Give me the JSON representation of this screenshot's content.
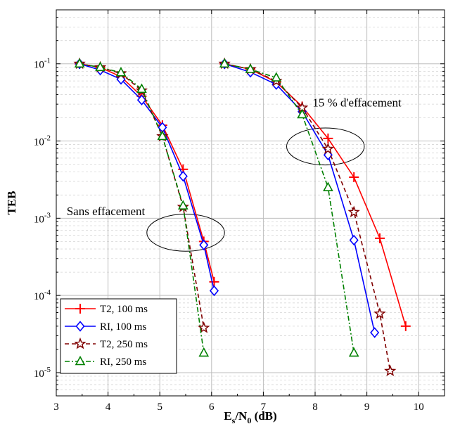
{
  "chart_data": {
    "type": "line",
    "xlabel": {
      "main": "E",
      "sub1": "s",
      "mid": "/N",
      "sub2": "0",
      "tail": " (dB)"
    },
    "ylabel": "TEB",
    "xlim": [
      3,
      10.5
    ],
    "ylim": [
      5e-06,
      0.5
    ],
    "yscale": "log",
    "grid": true,
    "legend_position": "bottom-left",
    "xticks": [
      "3",
      "4",
      "5",
      "6",
      "7",
      "8",
      "9",
      "10"
    ],
    "yticks": [
      {
        "value": 0.1,
        "base": "10",
        "exp": "-1"
      },
      {
        "value": 0.01,
        "base": "10",
        "exp": "-2"
      },
      {
        "value": 0.001,
        "base": "10",
        "exp": "-3"
      },
      {
        "value": 0.0001,
        "base": "10",
        "exp": "-4"
      },
      {
        "value": 1e-05,
        "base": "10",
        "exp": "-5"
      }
    ],
    "annotations": [
      {
        "text": "Sans effacement",
        "x": 3.2,
        "y": 0.0011,
        "ellipse": {
          "cx": 5.5,
          "cy": 0.00065,
          "rx_db": 0.75,
          "ry_decades": 0.24
        }
      },
      {
        "text": "15 % d'effacement",
        "x": 7.95,
        "y": 0.028,
        "ellipse": {
          "cx": 8.2,
          "cy": 0.0085,
          "rx_db": 0.75,
          "ry_decades": 0.24
        }
      }
    ],
    "series": [
      {
        "name": "T2, 100 ms",
        "color": "#ff0000",
        "marker": "plus",
        "dash": "solid",
        "groups": [
          {
            "x": [
              3.45,
              3.85,
              4.25,
              4.65,
              5.05,
              5.45,
              5.85,
              6.05
            ],
            "y": [
              0.1,
              0.09,
              0.068,
              0.038,
              0.016,
              0.0043,
              0.0005,
              0.00015
            ]
          },
          {
            "x": [
              6.25,
              6.75,
              7.25,
              7.75,
              8.25,
              8.75,
              9.25,
              9.75
            ],
            "y": [
              0.1,
              0.085,
              0.058,
              0.028,
              0.0108,
              0.0034,
              0.00055,
              4e-05
            ]
          }
        ]
      },
      {
        "name": "RI, 100 ms",
        "color": "#0000ff",
        "marker": "diamond",
        "dash": "solid",
        "groups": [
          {
            "x": [
              3.45,
              3.85,
              4.25,
              4.65,
              5.05,
              5.45,
              5.85,
              6.05
            ],
            "y": [
              0.1,
              0.083,
              0.063,
              0.034,
              0.015,
              0.0035,
              0.00045,
              0.000115
            ]
          },
          {
            "x": [
              6.25,
              6.75,
              7.25,
              7.75,
              8.25,
              8.75,
              9.15
            ],
            "y": [
              0.1,
              0.078,
              0.054,
              0.024,
              0.0066,
              0.00052,
              3.3e-05
            ]
          }
        ]
      },
      {
        "name": "T2, 250 ms",
        "color": "#800000",
        "marker": "star",
        "dash": "dash",
        "groups": [
          {
            "x": [
              3.45,
              3.85,
              4.25,
              4.65,
              5.05,
              5.45,
              5.85
            ],
            "y": [
              0.1,
              0.09,
              0.075,
              0.045,
              0.0115,
              0.0014,
              3.8e-05
            ]
          },
          {
            "x": [
              6.25,
              6.75,
              7.25,
              7.75,
              8.25,
              8.75,
              9.25,
              9.45
            ],
            "y": [
              0.1,
              0.085,
              0.06,
              0.027,
              0.0079,
              0.0012,
              5.8e-05,
              1.05e-05
            ]
          }
        ]
      },
      {
        "name": "RI, 250 ms",
        "color": "#008000",
        "marker": "triangle",
        "dash": "dashdot",
        "groups": [
          {
            "x": [
              3.45,
              3.85,
              4.25,
              4.65,
              5.05,
              5.45,
              5.85
            ],
            "y": [
              0.1,
              0.09,
              0.077,
              0.047,
              0.0115,
              0.00145,
              1.8e-05
            ]
          },
          {
            "x": [
              6.25,
              6.75,
              7.25,
              7.75,
              8.25,
              8.75
            ],
            "y": [
              0.1,
              0.085,
              0.066,
              0.022,
              0.0025,
              1.8e-05
            ]
          }
        ]
      }
    ]
  }
}
